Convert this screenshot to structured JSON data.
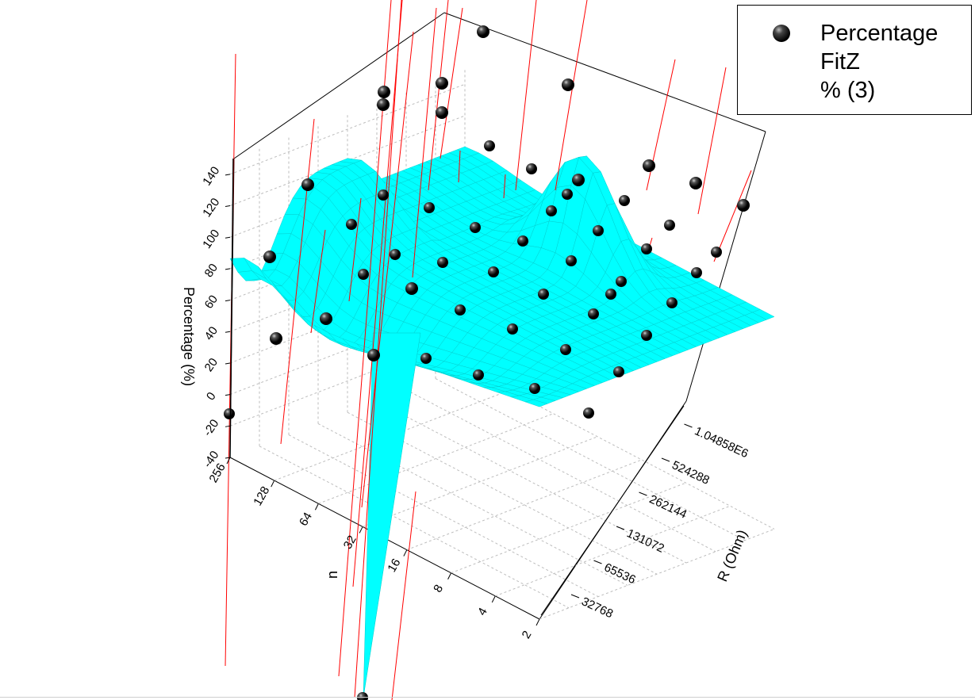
{
  "chart_data": {
    "type": "surface3d",
    "zlabel": "Percentage (%)",
    "xlabel": "n",
    "ylabel": "R (Ohm)",
    "z_ticks": [
      "-40",
      "-20",
      "0",
      "20",
      "40",
      "60",
      "80",
      "100",
      "120",
      "140"
    ],
    "n_ticks": [
      "2",
      "4",
      "8",
      "16",
      "32",
      "64",
      "128",
      "256"
    ],
    "r_ticks": [
      "32768",
      "65536",
      "131072",
      "262144",
      "524288",
      "1.04858E6"
    ],
    "zlim": [
      -40,
      150
    ],
    "legend": [
      "Percentage",
      "FitZ",
      "% (3)"
    ],
    "colors": {
      "surface": "#00ffff",
      "surface_line": "#00c8c8",
      "points": "#000000",
      "drop_lines": "#ff0000"
    }
  }
}
